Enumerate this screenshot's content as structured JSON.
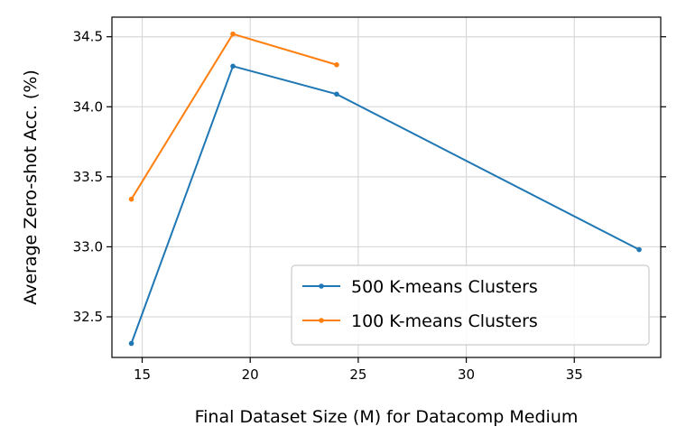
{
  "chart_data": {
    "type": "line",
    "xlabel": "Final Dataset Size (M) for Datacomp Medium",
    "ylabel": "Average Zero-shot Acc. (%)",
    "xlim": [
      13.6,
      39.0
    ],
    "ylim": [
      32.21,
      34.64
    ],
    "xticks": [
      15,
      20,
      25,
      30,
      35
    ],
    "yticks": [
      32.5,
      33.0,
      33.5,
      34.0,
      34.5
    ],
    "xtick_labels": [
      "15",
      "20",
      "25",
      "30",
      "35"
    ],
    "ytick_labels": [
      "32.5",
      "33.0",
      "33.5",
      "34.0",
      "34.5"
    ],
    "grid": true,
    "legend_position": "lower-right",
    "series": [
      {
        "name": "500 K-means Clusters",
        "color": "#1f77b4",
        "x": [
          14.5,
          19.2,
          24.0,
          38.0
        ],
        "y": [
          32.31,
          34.29,
          34.09,
          32.98
        ]
      },
      {
        "name": "100 K-means Clusters",
        "color": "#ff7f0e",
        "x": [
          14.5,
          19.2,
          24.0
        ],
        "y": [
          33.34,
          34.52,
          34.3
        ]
      }
    ]
  }
}
